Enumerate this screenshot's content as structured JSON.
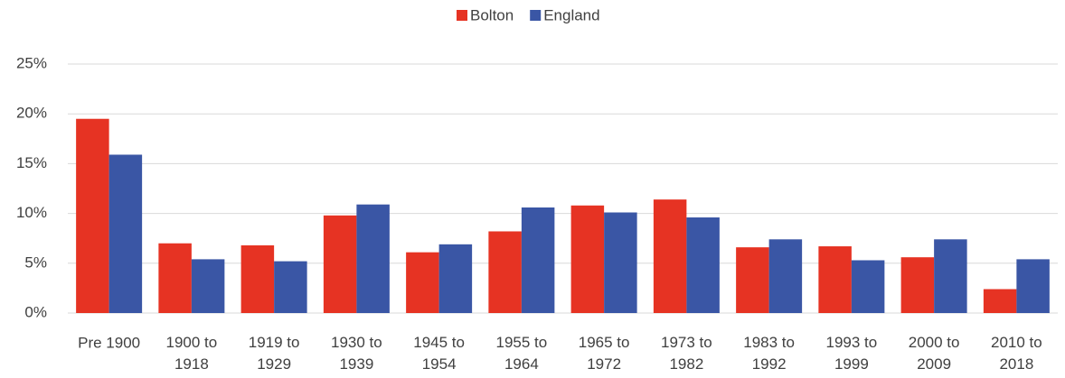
{
  "chart_data": {
    "type": "bar",
    "categories": [
      "Pre 1900",
      "1900 to 1918",
      "1919 to 1929",
      "1930 to 1939",
      "1945 to 1954",
      "1955 to 1964",
      "1965 to 1972",
      "1973 to 1982",
      "1983 to 1992",
      "1993 to 1999",
      "2000 to 2009",
      "2010 to 2018"
    ],
    "series": [
      {
        "name": "Bolton",
        "color": "#e63323",
        "values": [
          19.5,
          7.0,
          6.8,
          9.8,
          6.1,
          8.2,
          10.8,
          11.4,
          6.6,
          6.7,
          5.6,
          2.4
        ]
      },
      {
        "name": "England",
        "color": "#3a56a5",
        "values": [
          15.9,
          5.4,
          5.2,
          10.9,
          6.9,
          10.6,
          10.1,
          9.6,
          7.4,
          5.3,
          7.4,
          5.4
        ]
      }
    ],
    "ylim": [
      0,
      25
    ],
    "yticks": [
      {
        "value": 0,
        "label": "0%"
      },
      {
        "value": 5,
        "label": "5%"
      },
      {
        "value": 10,
        "label": "10%"
      },
      {
        "value": 15,
        "label": "15%"
      },
      {
        "value": 20,
        "label": "20%"
      },
      {
        "value": 25,
        "label": "25%"
      }
    ],
    "grid": true,
    "legend": "top"
  }
}
